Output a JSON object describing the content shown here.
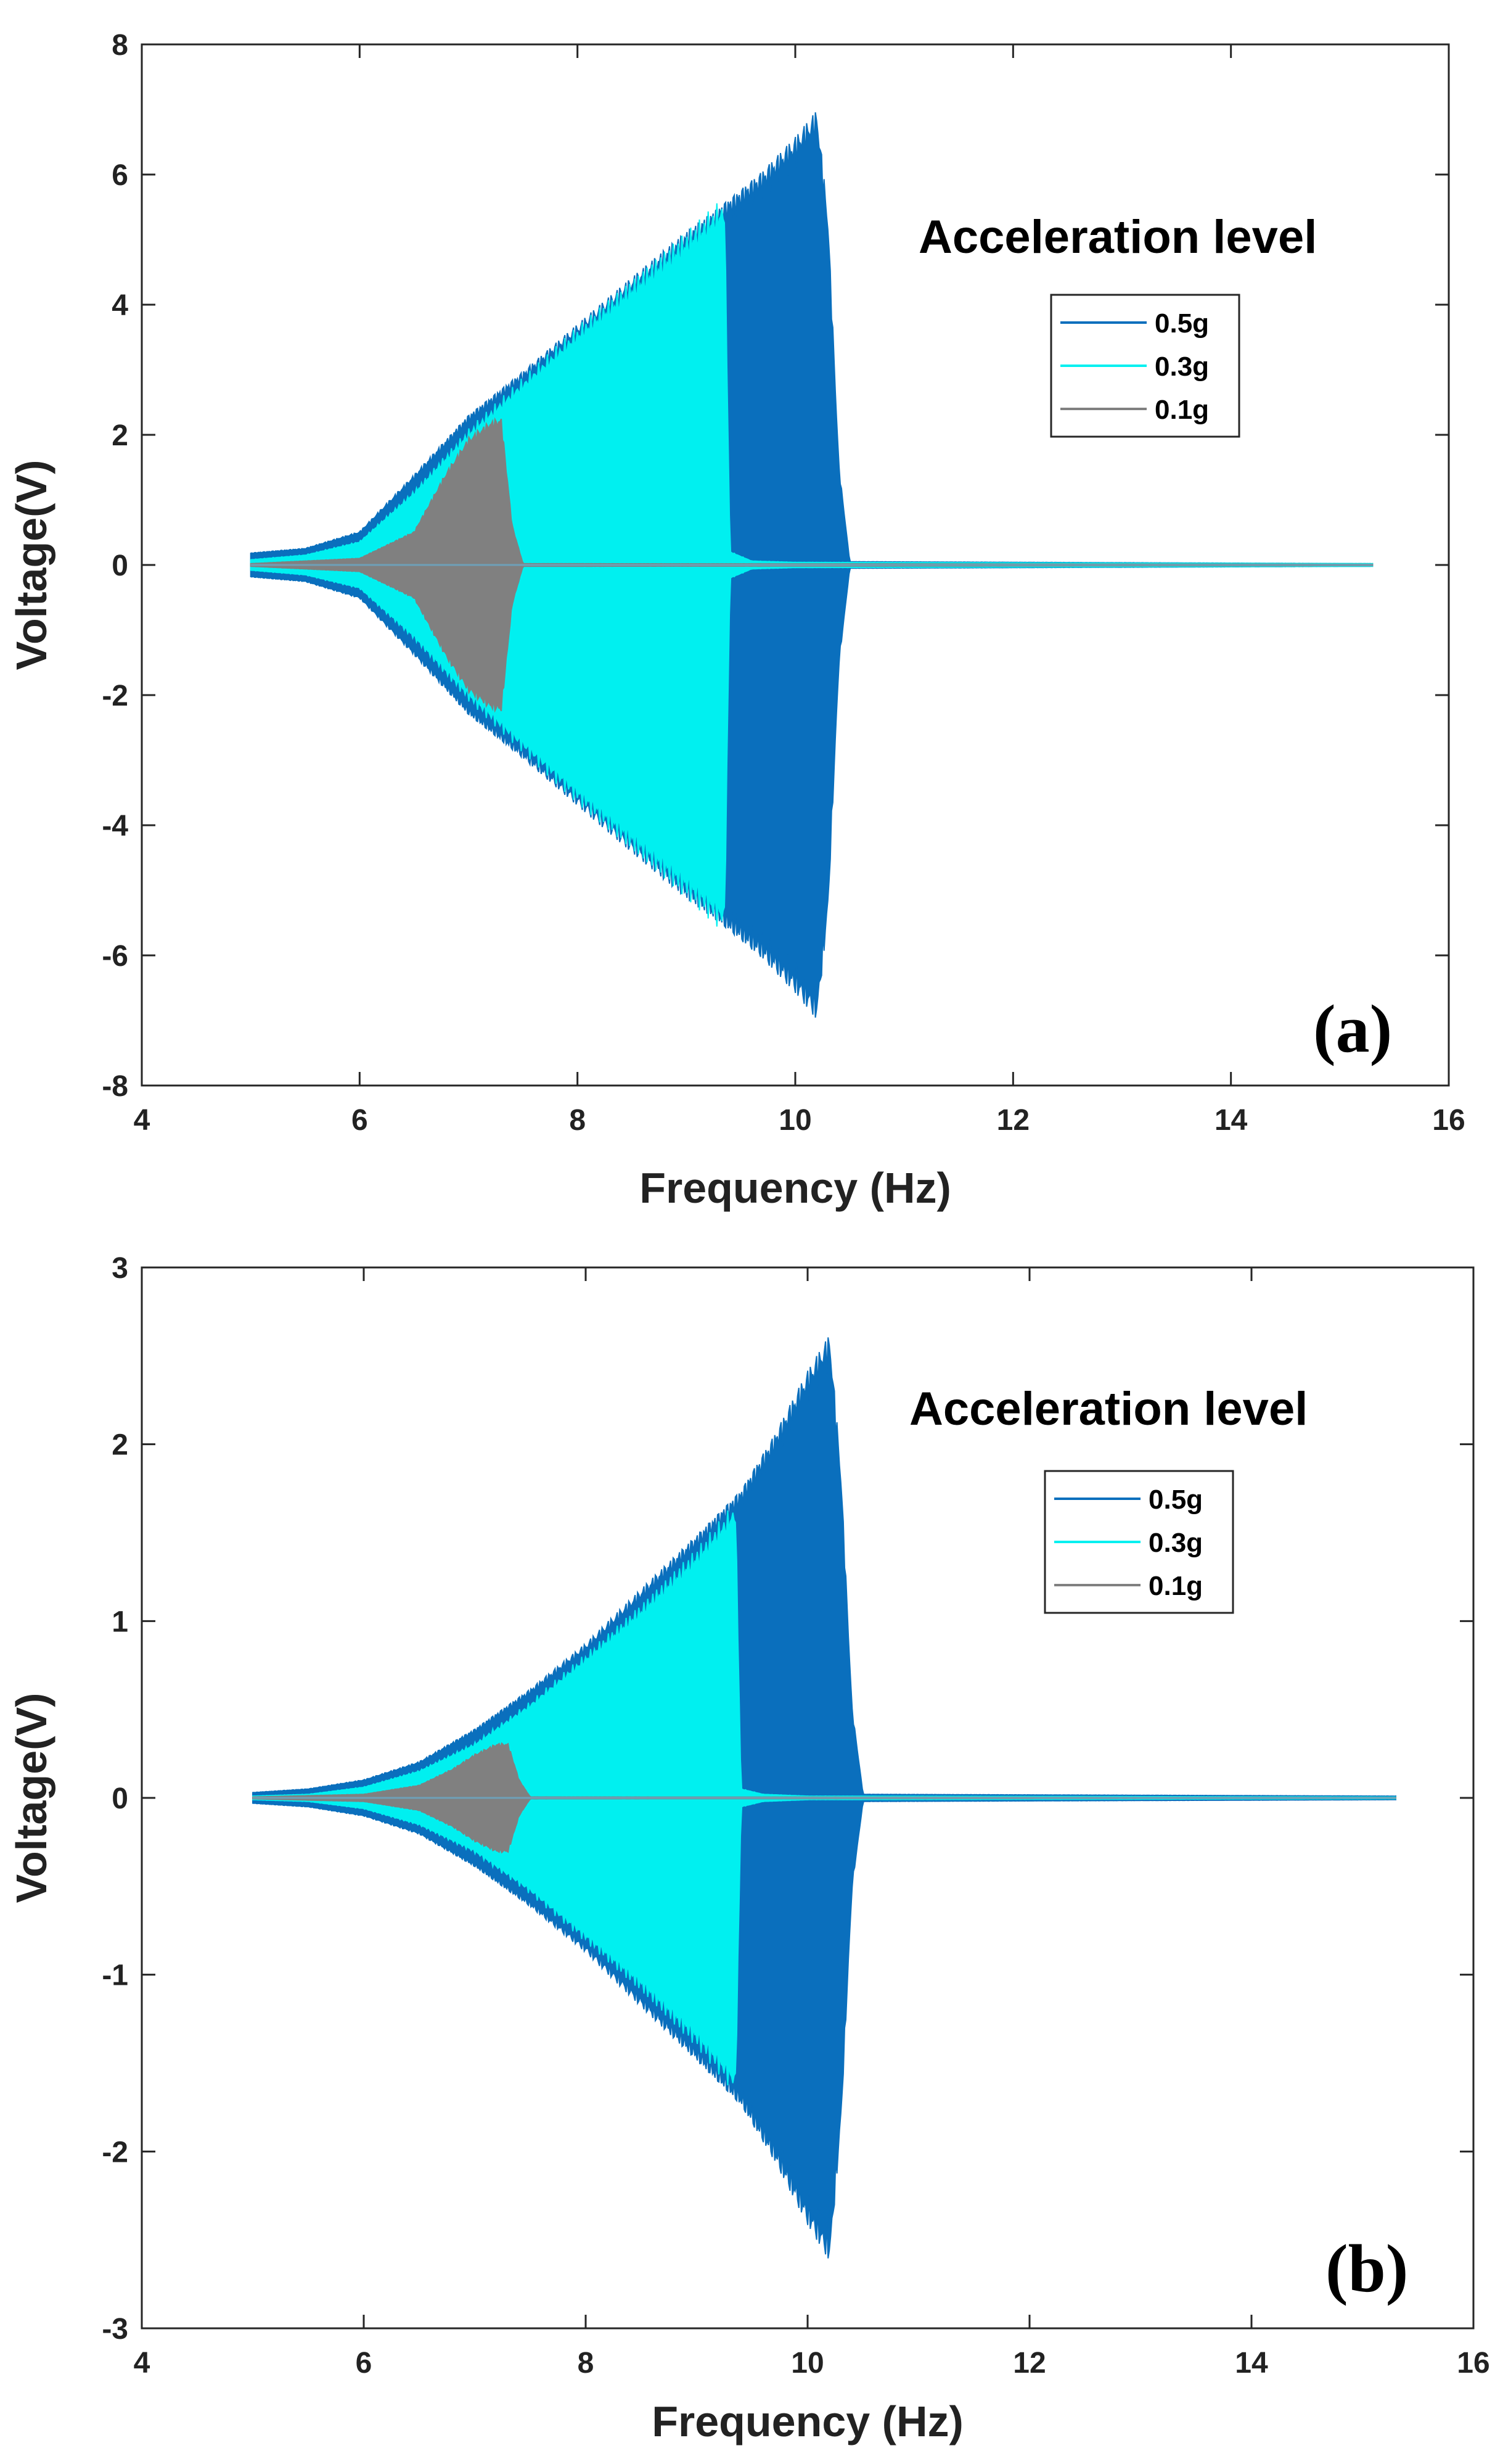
{
  "chart_data": [
    {
      "type": "area",
      "panel_label": "(a)",
      "title": "",
      "xlabel": "Frequency (Hz)",
      "ylabel": "Voltage(V)",
      "xlim": [
        4,
        16
      ],
      "ylim": [
        -8,
        8
      ],
      "xticks": [
        4,
        6,
        8,
        10,
        12,
        14,
        16
      ],
      "yticks": [
        -8,
        -6,
        -4,
        -2,
        0,
        2,
        4,
        6,
        8
      ],
      "legend_title": "Acceleration level",
      "legend_location": "upper-right",
      "series": [
        {
          "name": "0.5g",
          "color": "#0a6fbd",
          "x": [
            5.0,
            5.5,
            6.0,
            6.5,
            7.0,
            7.5,
            8.0,
            8.5,
            9.0,
            9.4,
            9.7,
            10.0,
            10.2,
            10.3,
            10.4,
            10.5,
            15.3
          ],
          "amplitude": [
            0.18,
            0.25,
            0.5,
            1.35,
            2.25,
            2.9,
            3.6,
            4.3,
            5.0,
            5.5,
            5.9,
            6.4,
            6.8,
            5.2,
            1.5,
            0.05,
            0.02
          ]
        },
        {
          "name": "0.3g",
          "color": "#00f0f0",
          "x": [
            5.0,
            5.5,
            6.0,
            6.5,
            7.0,
            7.5,
            8.0,
            8.5,
            9.0,
            9.35,
            9.4,
            9.6,
            10.0,
            15.3
          ],
          "amplitude": [
            0.08,
            0.15,
            0.35,
            1.1,
            2.0,
            2.75,
            3.5,
            4.2,
            4.9,
            5.4,
            0.2,
            0.06,
            0.04,
            0.02
          ]
        },
        {
          "name": "0.1g",
          "color": "#808080",
          "x": [
            5.0,
            6.0,
            6.5,
            6.8,
            7.0,
            7.2,
            7.3,
            7.4,
            7.5,
            15.3
          ],
          "amplitude": [
            0.02,
            0.1,
            0.5,
            1.4,
            1.9,
            2.15,
            2.2,
            0.6,
            0.02,
            0.01
          ]
        }
      ]
    },
    {
      "type": "area",
      "panel_label": "(b)",
      "title": "",
      "xlabel": "Frequency (Hz)",
      "ylabel": "Voltage(V)",
      "xlim": [
        4,
        16
      ],
      "ylim": [
        -3,
        3
      ],
      "xticks": [
        4,
        6,
        8,
        10,
        12,
        14,
        16
      ],
      "yticks": [
        -3,
        -2,
        -1,
        0,
        1,
        2,
        3
      ],
      "legend_title": "Acceleration level",
      "legend_location": "upper-right",
      "series": [
        {
          "name": "0.5g",
          "color": "#0a6fbd",
          "x": [
            5.0,
            5.5,
            6.0,
            6.5,
            7.0,
            7.5,
            8.0,
            8.5,
            9.0,
            9.4,
            9.7,
            10.0,
            10.2,
            10.3,
            10.4,
            10.5,
            15.3
          ],
          "amplitude": [
            0.03,
            0.05,
            0.1,
            0.2,
            0.38,
            0.6,
            0.85,
            1.15,
            1.45,
            1.7,
            2.0,
            2.35,
            2.55,
            1.8,
            0.5,
            0.02,
            0.01
          ]
        },
        {
          "name": "0.3g",
          "color": "#00f0f0",
          "x": [
            5.0,
            5.5,
            6.0,
            6.5,
            7.0,
            7.5,
            8.0,
            8.5,
            9.0,
            9.35,
            9.4,
            9.6,
            10.0,
            15.3
          ],
          "amplitude": [
            0.01,
            0.02,
            0.06,
            0.15,
            0.3,
            0.52,
            0.78,
            1.05,
            1.35,
            1.6,
            0.05,
            0.02,
            0.01,
            0.005
          ]
        },
        {
          "name": "0.1g",
          "color": "#808080",
          "x": [
            5.0,
            6.0,
            6.5,
            6.8,
            7.0,
            7.2,
            7.3,
            7.4,
            7.5,
            15.3
          ],
          "amplitude": [
            0.005,
            0.02,
            0.07,
            0.16,
            0.24,
            0.3,
            0.3,
            0.1,
            0.005,
            0.002
          ]
        }
      ]
    }
  ]
}
